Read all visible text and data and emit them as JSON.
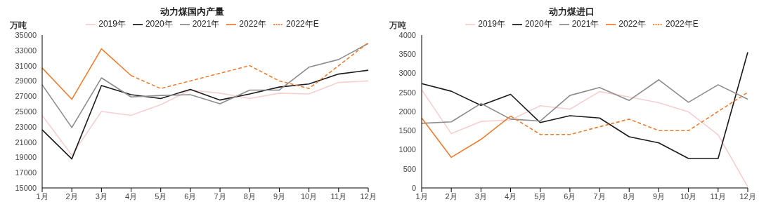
{
  "chart_data": [
    {
      "type": "line",
      "title": "动力煤国内产量",
      "ylabel": "万吨",
      "categories": [
        "1月",
        "2月",
        "3月",
        "4月",
        "5月",
        "6月",
        "7月",
        "8月",
        "9月",
        "10月",
        "11月",
        "12月"
      ],
      "ylim": [
        15000,
        35000
      ],
      "yticks": [
        15000,
        17000,
        19000,
        21000,
        23000,
        25000,
        27000,
        29000,
        31000,
        33000,
        35000
      ],
      "grid": false,
      "legend": "top",
      "marker": "none",
      "series": [
        {
          "name": "2019年",
          "color": "#f8cfd0",
          "values": [
            24500,
            19300,
            25000,
            24500,
            25900,
            27800,
            27400,
            26700,
            27400,
            27300,
            28800,
            29000
          ]
        },
        {
          "name": "2020年",
          "color": "#1a1a1a",
          "values": [
            22600,
            18800,
            28400,
            27200,
            26700,
            27900,
            26500,
            27300,
            28200,
            28600,
            29900,
            30400
          ]
        },
        {
          "name": "2021年",
          "color": "#8c8c8c",
          "values": [
            28500,
            22900,
            29400,
            26900,
            27100,
            27200,
            26000,
            27800,
            27800,
            30800,
            31800,
            33900
          ]
        },
        {
          "name": "2022年",
          "color": "#ed7d31",
          "values": [
            30700,
            26600,
            33200,
            29700,
            null,
            null,
            null,
            null,
            null,
            null,
            null,
            null
          ]
        },
        {
          "name": "2022年E",
          "color": "#ed7d31",
          "line_style": "dashed",
          "values": [
            null,
            null,
            null,
            29700,
            28000,
            29000,
            30000,
            31000,
            29000,
            28000,
            31000,
            34000
          ]
        }
      ]
    },
    {
      "type": "line",
      "title": "动力煤进口",
      "ylabel": "万吨",
      "categories": [
        "1月",
        "2月",
        "3月",
        "4月",
        "5月",
        "6月",
        "7月",
        "8月",
        "9月",
        "10月",
        "11月",
        "12月"
      ],
      "ylim": [
        0,
        4000
      ],
      "yticks": [
        0,
        500,
        1000,
        1500,
        2000,
        2500,
        3000,
        3500,
        4000
      ],
      "grid": false,
      "legend": "top",
      "marker": "none",
      "series": [
        {
          "name": "2019年",
          "color": "#f8cfd0",
          "values": [
            2570,
            1420,
            1740,
            1780,
            2150,
            2060,
            2520,
            2380,
            2230,
            1990,
            1390,
            30
          ]
        },
        {
          "name": "2020年",
          "color": "#1a1a1a",
          "values": [
            2730,
            2530,
            2160,
            2450,
            1710,
            1890,
            1830,
            1340,
            1180,
            770,
            770,
            3550
          ]
        },
        {
          "name": "2021年",
          "color": "#8c8c8c",
          "values": [
            1690,
            1730,
            2210,
            1800,
            1750,
            2420,
            2630,
            2290,
            2830,
            2240,
            2700,
            2320
          ]
        },
        {
          "name": "2022年",
          "color": "#ed7d31",
          "values": [
            1830,
            800,
            1270,
            1880,
            null,
            null,
            null,
            null,
            null,
            null,
            null,
            null
          ]
        },
        {
          "name": "2022年E",
          "color": "#ed7d31",
          "line_style": "dashed",
          "values": [
            null,
            null,
            null,
            1880,
            1400,
            1400,
            1600,
            1800,
            1500,
            1500,
            2000,
            2500
          ]
        }
      ]
    }
  ]
}
